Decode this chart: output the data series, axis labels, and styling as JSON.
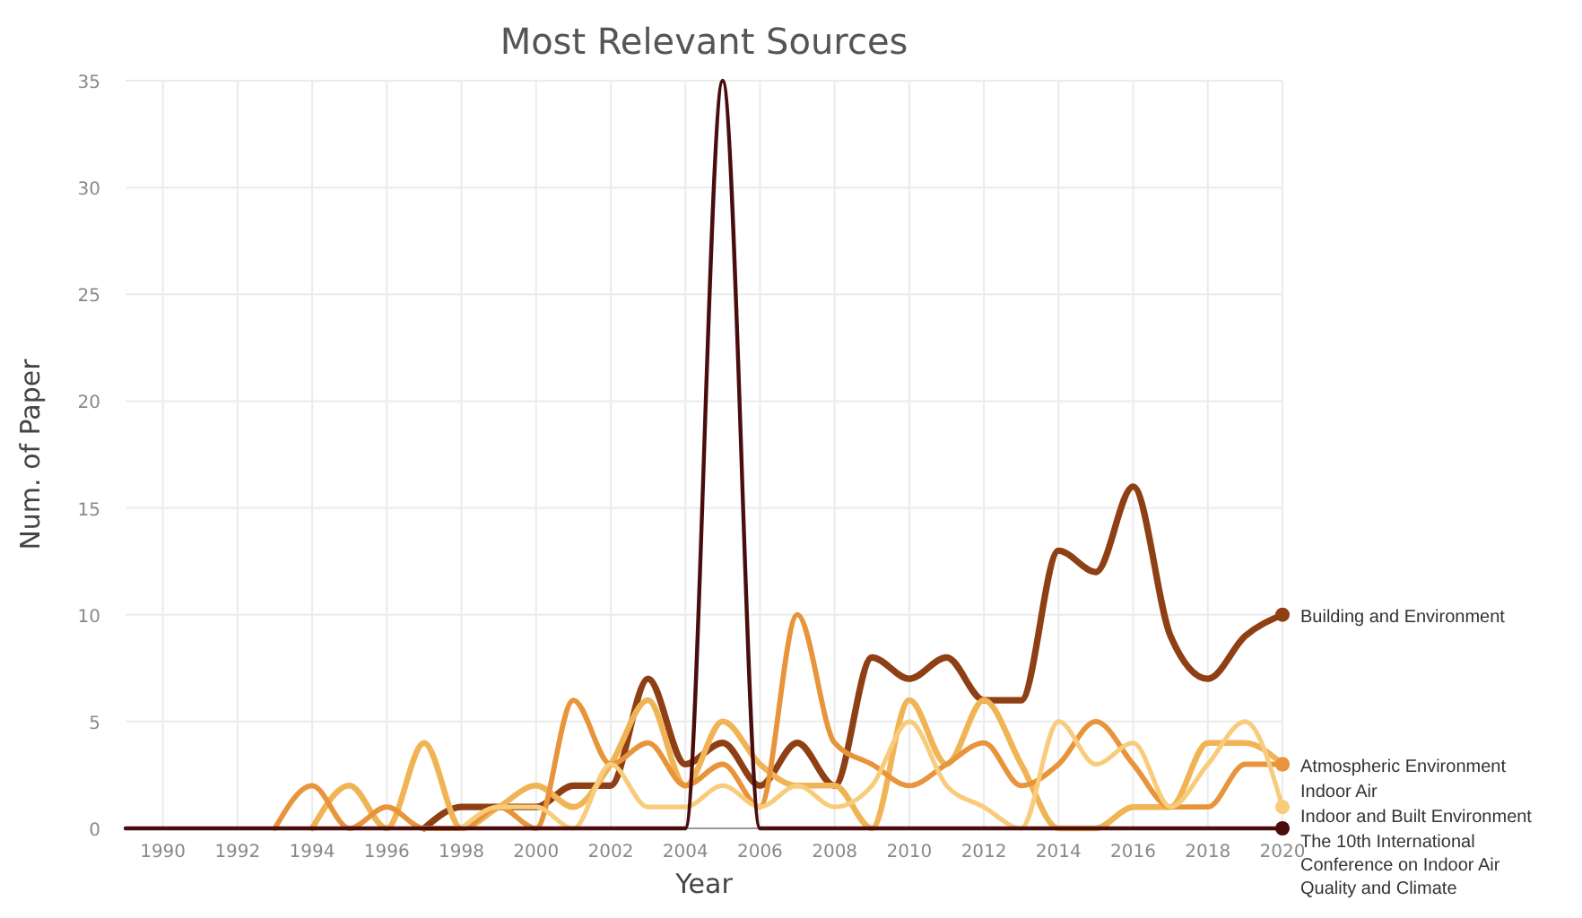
{
  "chart_data": {
    "type": "line",
    "title": "Most Relevant Sources",
    "xlabel": "Year",
    "ylabel": "Num. of Paper",
    "x": [
      1989,
      1990,
      1991,
      1992,
      1993,
      1994,
      1995,
      1996,
      1997,
      1998,
      1999,
      2000,
      2001,
      2002,
      2003,
      2004,
      2005,
      2006,
      2007,
      2008,
      2009,
      2010,
      2011,
      2012,
      2013,
      2014,
      2015,
      2016,
      2017,
      2018,
      2019,
      2020
    ],
    "xlim": [
      1989,
      2020
    ],
    "xticks": [
      1990,
      1992,
      1994,
      1996,
      1998,
      2000,
      2002,
      2004,
      2006,
      2008,
      2010,
      2012,
      2014,
      2016,
      2018,
      2020
    ],
    "ylim": [
      0,
      35
    ],
    "yticks": [
      0,
      5,
      10,
      15,
      20,
      25,
      30,
      35
    ],
    "grid": true,
    "legend": "right",
    "marker": "none",
    "line_style": "solid",
    "series": [
      {
        "name": "Building and Environment",
        "color": "#8e3f14",
        "values": [
          null,
          null,
          null,
          null,
          null,
          null,
          null,
          null,
          0,
          1,
          1,
          1,
          2,
          2,
          7,
          3,
          4,
          2,
          4,
          2,
          8,
          7,
          8,
          6,
          6,
          13,
          12,
          16,
          9,
          7,
          9,
          10
        ]
      },
      {
        "name": "Atmospheric Environment",
        "color": "#f0b455",
        "values": [
          null,
          null,
          null,
          null,
          null,
          0,
          2,
          0,
          4,
          0,
          1,
          2,
          1,
          3,
          6,
          2,
          5,
          3,
          2,
          2,
          0,
          6,
          3,
          6,
          3,
          0,
          0,
          1,
          1,
          4,
          4,
          3
        ]
      },
      {
        "name": "Indoor Air",
        "color": "#e8943a",
        "values": [
          null,
          null,
          null,
          null,
          0,
          2,
          0,
          1,
          0,
          0,
          1,
          0,
          6,
          3,
          4,
          2,
          3,
          1,
          10,
          4,
          3,
          2,
          3,
          4,
          2,
          3,
          5,
          3,
          1,
          1,
          3,
          3
        ]
      },
      {
        "name": "Indoor and Built Environment",
        "color": "#f8cc7a",
        "values": [
          null,
          null,
          null,
          null,
          null,
          null,
          null,
          null,
          null,
          0,
          1,
          1,
          0,
          3,
          1,
          1,
          2,
          1,
          2,
          1,
          2,
          5,
          2,
          1,
          0,
          5,
          3,
          4,
          1,
          3,
          5,
          1
        ]
      },
      {
        "name": "The 10th International Conference on Indoor Air Quality and Climate",
        "color": "#4a0d0d",
        "values": [
          0,
          0,
          0,
          0,
          0,
          0,
          0,
          0,
          0,
          0,
          0,
          0,
          0,
          0,
          0,
          0,
          35,
          0,
          0,
          0,
          0,
          0,
          0,
          0,
          0,
          0,
          0,
          0,
          0,
          0,
          0,
          0
        ]
      }
    ]
  }
}
